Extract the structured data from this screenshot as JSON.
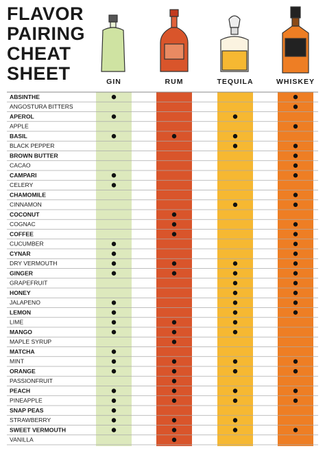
{
  "header": {
    "title": [
      "FLAVOR",
      "PAIRING",
      "CHEAT",
      "SHEET"
    ]
  },
  "columns": [
    {
      "name": "GIN",
      "color": "#dde9bd"
    },
    {
      "name": "RUM",
      "color": "#d9552b"
    },
    {
      "name": "TEQUILA",
      "color": "#f6b832"
    },
    {
      "name": "WHISKEY",
      "color": "#ee7e24"
    }
  ],
  "rows": [
    {
      "name": "ABSINTHE",
      "pairs": [
        true,
        false,
        false,
        true
      ]
    },
    {
      "name": "ANGOSTURA BITTERS",
      "pairs": [
        false,
        false,
        false,
        true
      ]
    },
    {
      "name": "APEROL",
      "pairs": [
        true,
        false,
        true,
        false
      ]
    },
    {
      "name": "APPLE",
      "pairs": [
        false,
        false,
        false,
        true
      ]
    },
    {
      "name": "BASIL",
      "pairs": [
        true,
        true,
        true,
        false
      ]
    },
    {
      "name": "BLACK PEPPER",
      "pairs": [
        false,
        false,
        true,
        true
      ]
    },
    {
      "name": "BROWN BUTTER",
      "pairs": [
        false,
        false,
        false,
        true
      ]
    },
    {
      "name": "CACAO",
      "pairs": [
        false,
        false,
        false,
        true
      ]
    },
    {
      "name": "CAMPARI",
      "pairs": [
        true,
        false,
        false,
        true
      ]
    },
    {
      "name": "CELERY",
      "pairs": [
        true,
        false,
        false,
        false
      ]
    },
    {
      "name": "CHAMOMILE",
      "pairs": [
        false,
        false,
        false,
        true
      ]
    },
    {
      "name": "CINNAMON",
      "pairs": [
        false,
        false,
        true,
        true
      ]
    },
    {
      "name": "COCONUT",
      "pairs": [
        false,
        true,
        false,
        false
      ]
    },
    {
      "name": "COGNAC",
      "pairs": [
        false,
        true,
        false,
        true
      ]
    },
    {
      "name": "COFFEE",
      "pairs": [
        false,
        true,
        false,
        true
      ]
    },
    {
      "name": "CUCUMBER",
      "pairs": [
        true,
        false,
        false,
        true
      ]
    },
    {
      "name": "CYNAR",
      "pairs": [
        true,
        false,
        false,
        true
      ]
    },
    {
      "name": "DRY VERMOUTH",
      "pairs": [
        true,
        true,
        true,
        true
      ]
    },
    {
      "name": "GINGER",
      "pairs": [
        true,
        true,
        true,
        true
      ]
    },
    {
      "name": "GRAPEFRUIT",
      "pairs": [
        false,
        false,
        true,
        true
      ]
    },
    {
      "name": "HONEY",
      "pairs": [
        false,
        false,
        true,
        true
      ]
    },
    {
      "name": "JALAPENO",
      "pairs": [
        true,
        false,
        true,
        true
      ]
    },
    {
      "name": "LEMON",
      "pairs": [
        true,
        false,
        true,
        true
      ]
    },
    {
      "name": "LIME",
      "pairs": [
        true,
        true,
        true,
        false
      ]
    },
    {
      "name": "MANGO",
      "pairs": [
        true,
        true,
        true,
        false
      ]
    },
    {
      "name": "MAPLE SYRUP",
      "pairs": [
        false,
        true,
        false,
        false
      ]
    },
    {
      "name": "MATCHA",
      "pairs": [
        true,
        false,
        false,
        false
      ]
    },
    {
      "name": "MINT",
      "pairs": [
        true,
        true,
        true,
        true
      ]
    },
    {
      "name": "ORANGE",
      "pairs": [
        true,
        true,
        true,
        true
      ]
    },
    {
      "name": "PASSIONFRUIT",
      "pairs": [
        false,
        true,
        false,
        false
      ]
    },
    {
      "name": "PEACH",
      "pairs": [
        true,
        true,
        true,
        true
      ]
    },
    {
      "name": "PINEAPPLE",
      "pairs": [
        true,
        true,
        true,
        true
      ]
    },
    {
      "name": "SNAP PEAS",
      "pairs": [
        true,
        false,
        false,
        false
      ]
    },
    {
      "name": "STRAWBERRY",
      "pairs": [
        true,
        true,
        true,
        false
      ]
    },
    {
      "name": "SWEET VERMOUTH",
      "pairs": [
        true,
        true,
        true,
        true
      ]
    },
    {
      "name": "VANILLA",
      "pairs": [
        false,
        true,
        false,
        false
      ]
    }
  ]
}
